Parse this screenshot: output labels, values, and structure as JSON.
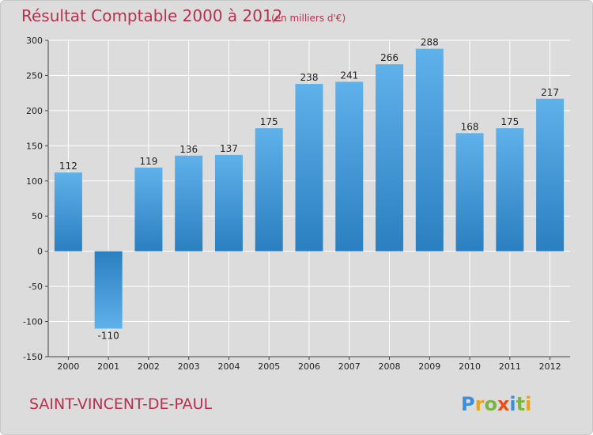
{
  "chart_data": {
    "type": "bar",
    "title": "Résultat Comptable 2000 à 2012",
    "subtitle": "(en milliers d'€)",
    "categories": [
      "2000",
      "2001",
      "2002",
      "2003",
      "2004",
      "2005",
      "2006",
      "2007",
      "2008",
      "2009",
      "2010",
      "2011",
      "2012"
    ],
    "values": [
      112,
      -110,
      119,
      136,
      137,
      175,
      238,
      241,
      266,
      288,
      168,
      175,
      217
    ],
    "data_labels": [
      "112",
      "-110",
      "119",
      "136",
      "137",
      "175",
      "238",
      "241",
      "266",
      "288",
      "168",
      "175",
      "217"
    ],
    "ylim": [
      -150,
      300
    ],
    "yticks": [
      "300",
      "250",
      "200",
      "150",
      "100",
      "50",
      "0",
      "-50",
      "-100",
      "-150"
    ],
    "xlabel": "",
    "ylabel": "",
    "grid": true,
    "legend": "none"
  },
  "footer": {
    "commune": "SAINT-VINCENT-DE-PAUL",
    "brand": [
      "P",
      "r",
      "o",
      "x",
      "i",
      "t",
      "i"
    ]
  },
  "colors": {
    "bar_light": "#5fb1ea",
    "bar_dark": "#2a7fc0",
    "accent": "#b5324f",
    "plot_bg": "#dcdcdc",
    "grid": "#ffffff",
    "brand": [
      "#3a8fd8",
      "#e8a41c",
      "#7ab640",
      "#e84f1c",
      "#3a8fd8",
      "#7ab640",
      "#e8a41c"
    ]
  }
}
